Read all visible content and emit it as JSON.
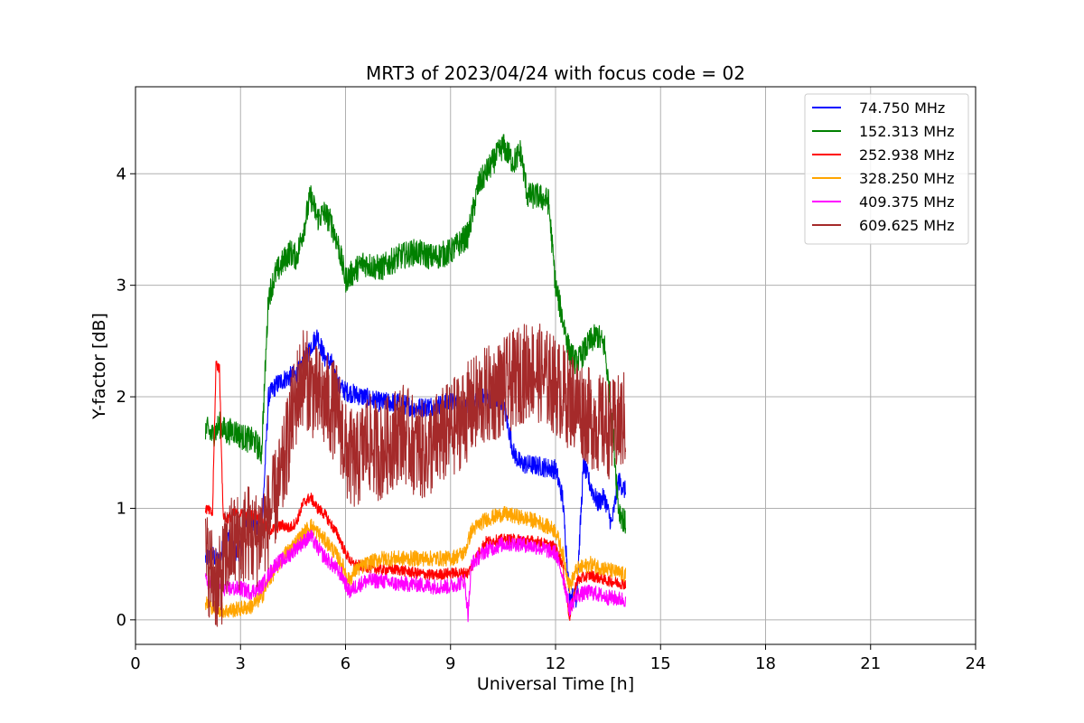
{
  "chart_data": {
    "type": "line",
    "title": "MRT3 of 2023/04/24 with focus code = 02",
    "xlabel": "Universal Time [h]",
    "ylabel": "Y-factor [dB]",
    "xlim": [
      0,
      24
    ],
    "ylim": [
      -0.22,
      4.78
    ],
    "xticks": [
      0,
      3,
      6,
      9,
      12,
      15,
      18,
      21,
      24
    ],
    "yticks": [
      0,
      1,
      2,
      3,
      4
    ],
    "grid": true,
    "legend_position": "top-right",
    "series": [
      {
        "name": " 74.750 MHz",
        "color": "#0000ff",
        "x": [
          2.0,
          2.2,
          2.4,
          2.6,
          2.8,
          3.0,
          3.2,
          3.4,
          3.6,
          3.8,
          4.0,
          4.2,
          4.4,
          4.6,
          4.8,
          5.0,
          5.2,
          5.4,
          5.6,
          5.8,
          6.0,
          6.5,
          7.0,
          7.5,
          8.0,
          8.5,
          9.0,
          9.5,
          10.0,
          10.5,
          10.8,
          11.0,
          11.5,
          12.0,
          12.2,
          12.4,
          12.6,
          12.8,
          13.0,
          13.2,
          13.4,
          13.6,
          13.8,
          14.0
        ],
        "y": [
          0.55,
          0.58,
          0.52,
          0.8,
          0.6,
          0.62,
          0.95,
          0.85,
          0.75,
          2.0,
          2.1,
          2.15,
          2.18,
          2.2,
          2.3,
          2.45,
          2.55,
          2.35,
          2.3,
          2.1,
          2.05,
          2.0,
          1.95,
          1.95,
          1.9,
          1.92,
          1.95,
          1.9,
          2.0,
          1.95,
          1.5,
          1.4,
          1.38,
          1.35,
          1.1,
          0.2,
          0.2,
          1.4,
          1.2,
          1.05,
          1.1,
          0.85,
          1.25,
          1.15
        ]
      },
      {
        "name": "152.313 MHz",
        "color": "#008000",
        "x": [
          2.0,
          2.2,
          2.4,
          2.6,
          2.8,
          3.0,
          3.2,
          3.4,
          3.6,
          3.8,
          4.0,
          4.2,
          4.4,
          4.6,
          4.8,
          5.0,
          5.2,
          5.4,
          5.6,
          5.8,
          6.0,
          6.5,
          7.0,
          7.5,
          8.0,
          8.5,
          9.0,
          9.5,
          9.8,
          10.0,
          10.2,
          10.5,
          10.8,
          11.0,
          11.2,
          11.5,
          11.8,
          12.0,
          12.2,
          12.4,
          12.6,
          12.8,
          13.0,
          13.2,
          13.4,
          13.6,
          13.8,
          14.0
        ],
        "y": [
          1.72,
          1.65,
          1.75,
          1.68,
          1.7,
          1.65,
          1.62,
          1.6,
          1.5,
          2.9,
          3.1,
          3.2,
          3.3,
          3.25,
          3.5,
          3.8,
          3.6,
          3.65,
          3.55,
          3.35,
          3.05,
          3.2,
          3.15,
          3.25,
          3.3,
          3.25,
          3.3,
          3.45,
          3.9,
          4.0,
          4.1,
          4.25,
          4.1,
          4.2,
          3.8,
          3.8,
          3.75,
          3.0,
          2.7,
          2.4,
          2.3,
          2.4,
          2.5,
          2.55,
          2.45,
          1.85,
          1.0,
          0.85
        ]
      },
      {
        "name": "252.938 MHz",
        "color": "#ff0000",
        "x": [
          2.0,
          2.2,
          2.3,
          2.4,
          2.5,
          2.6,
          2.8,
          3.0,
          3.2,
          3.4,
          3.6,
          3.8,
          4.0,
          4.2,
          4.4,
          4.6,
          4.8,
          5.0,
          5.2,
          5.4,
          5.6,
          5.8,
          6.0,
          6.2,
          6.5,
          7.0,
          7.5,
          8.0,
          8.5,
          9.0,
          9.5,
          9.8,
          10.0,
          10.5,
          11.0,
          11.5,
          12.0,
          12.2,
          12.4,
          12.6,
          12.8,
          13.0,
          13.5,
          14.0
        ],
        "y": [
          1.0,
          0.95,
          2.3,
          2.25,
          0.95,
          0.9,
          0.95,
          0.95,
          0.92,
          0.95,
          0.9,
          0.8,
          0.82,
          0.85,
          0.82,
          0.88,
          1.05,
          1.1,
          1.0,
          0.95,
          0.85,
          0.75,
          0.6,
          0.5,
          0.48,
          0.45,
          0.45,
          0.42,
          0.4,
          0.42,
          0.42,
          0.6,
          0.7,
          0.72,
          0.72,
          0.7,
          0.65,
          0.5,
          0.02,
          0.35,
          0.38,
          0.4,
          0.35,
          0.32
        ]
      },
      {
        "name": "328.250 MHz",
        "color": "#ffa500",
        "x": [
          2.0,
          2.3,
          2.6,
          3.0,
          3.3,
          3.6,
          3.8,
          4.0,
          4.3,
          4.6,
          5.0,
          5.3,
          5.6,
          5.9,
          6.1,
          6.3,
          6.6,
          7.0,
          7.5,
          8.0,
          8.5,
          9.0,
          9.4,
          9.6,
          10.0,
          10.5,
          11.0,
          11.5,
          12.0,
          12.2,
          12.4,
          12.6,
          13.0,
          13.5,
          14.0
        ],
        "y": [
          0.15,
          0.1,
          0.08,
          0.1,
          0.12,
          0.2,
          0.35,
          0.45,
          0.6,
          0.7,
          0.85,
          0.75,
          0.65,
          0.5,
          0.35,
          0.45,
          0.5,
          0.55,
          0.55,
          0.55,
          0.55,
          0.55,
          0.6,
          0.8,
          0.9,
          0.95,
          0.92,
          0.88,
          0.8,
          0.6,
          0.3,
          0.45,
          0.5,
          0.45,
          0.4
        ]
      },
      {
        "name": "409.375 MHz",
        "color": "#ff00ff",
        "x": [
          2.0,
          2.3,
          2.6,
          3.0,
          3.3,
          3.6,
          3.8,
          4.0,
          4.3,
          4.6,
          5.0,
          5.3,
          5.6,
          5.9,
          6.1,
          6.3,
          6.6,
          7.0,
          7.5,
          8.0,
          8.5,
          9.0,
          9.4,
          9.5,
          9.6,
          10.0,
          10.5,
          11.0,
          11.5,
          12.0,
          12.2,
          12.4,
          12.6,
          13.0,
          13.5,
          14.0
        ],
        "y": [
          0.35,
          0.3,
          0.28,
          0.28,
          0.25,
          0.3,
          0.4,
          0.5,
          0.55,
          0.65,
          0.75,
          0.6,
          0.5,
          0.4,
          0.25,
          0.3,
          0.35,
          0.35,
          0.32,
          0.32,
          0.3,
          0.3,
          0.35,
          0.05,
          0.5,
          0.62,
          0.68,
          0.68,
          0.65,
          0.6,
          0.4,
          0.1,
          0.22,
          0.25,
          0.2,
          0.18
        ]
      },
      {
        "name": "609.625 MHz",
        "color": "#a52a2a",
        "x": [
          2.0,
          2.2,
          2.4,
          2.6,
          2.8,
          3.0,
          3.2,
          3.4,
          3.6,
          3.8,
          4.0,
          4.2,
          4.4,
          4.6,
          4.8,
          5.0,
          5.2,
          5.4,
          5.6,
          5.8,
          6.0,
          6.3,
          6.6,
          7.0,
          7.3,
          7.6,
          8.0,
          8.3,
          8.6,
          9.0,
          9.3,
          9.6,
          10.0,
          10.3,
          10.6,
          11.0,
          11.3,
          11.6,
          12.0,
          12.3,
          12.6,
          13.0,
          13.3,
          13.6,
          14.0
        ],
        "y": [
          0.55,
          0.4,
          0.3,
          0.6,
          0.7,
          0.7,
          0.8,
          0.7,
          0.8,
          0.9,
          1.1,
          1.3,
          1.7,
          2.0,
          2.2,
          2.1,
          2.0,
          1.95,
          1.9,
          1.85,
          1.5,
          1.4,
          1.6,
          1.5,
          1.6,
          1.7,
          1.55,
          1.5,
          1.6,
          1.7,
          1.8,
          1.9,
          2.0,
          2.05,
          2.1,
          2.2,
          2.25,
          2.2,
          2.1,
          2.0,
          1.95,
          1.8,
          1.75,
          1.7,
          1.8
        ]
      }
    ]
  }
}
